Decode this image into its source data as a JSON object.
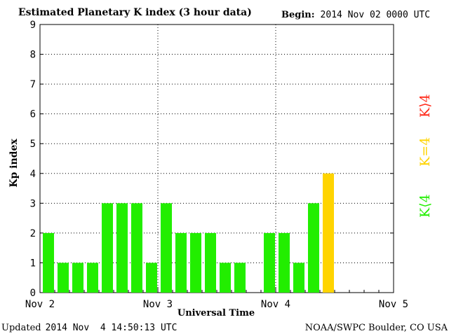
{
  "header": {
    "title": "Estimated Planetary K index (3 hour data)",
    "begin_label": "Begin:",
    "begin_value": "2014 Nov 02 0000 UTC"
  },
  "footer": {
    "updated_label": "Updated",
    "updated_value": "2014 Nov  4 14:50:13 UTC",
    "credit": "NOAA/SWPC Boulder, CO USA"
  },
  "legend": {
    "above": {
      "label": "K⟩4",
      "color": "#ff2a1a"
    },
    "equal": {
      "label": "K=4",
      "color": "#ffd400"
    },
    "below": {
      "label": "K⟨4",
      "color": "#22ee00"
    }
  },
  "chart_data": {
    "type": "bar",
    "title": "Estimated Planetary K index (3 hour data)",
    "xlabel": "Universal Time",
    "ylabel": "Kp index",
    "ylim": [
      0,
      9
    ],
    "yticks": [
      "0",
      "1",
      "2",
      "3",
      "4",
      "5",
      "6",
      "7",
      "8",
      "9"
    ],
    "xticks": [
      "Nov 2",
      "Nov 3",
      "Nov 4",
      "Nov 5"
    ],
    "grid": true,
    "slots_per_day": 8,
    "values": [
      2,
      1,
      1,
      1,
      3,
      3,
      3,
      1,
      3,
      2,
      2,
      2,
      1,
      1,
      0,
      2,
      2,
      1,
      3,
      4
    ],
    "colors": {
      "below": "#22ee00",
      "equal": "#ffd400",
      "above": "#ff2a1a"
    }
  }
}
